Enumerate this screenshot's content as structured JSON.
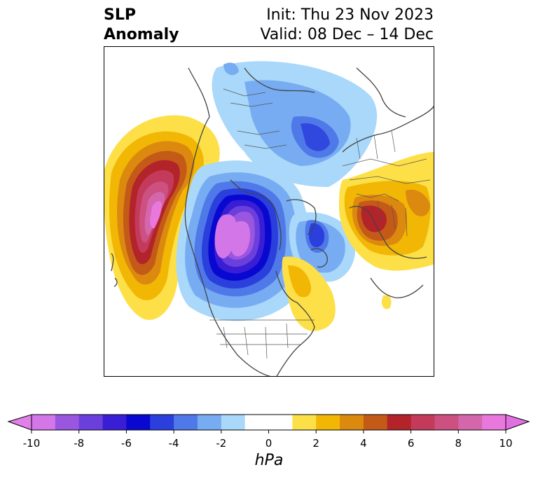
{
  "title": {
    "variable_line1": "SLP",
    "variable_line2": "Anomaly",
    "init": "Init: Thu 23 Nov 2023",
    "valid": "Valid: 08 Dec – 14 Dec"
  },
  "colorbar": {
    "units": "hPa",
    "ticks": [
      "-10",
      "-8",
      "-6",
      "-4",
      "-2",
      "0",
      "2",
      "4",
      "6",
      "8",
      "10"
    ],
    "tick_values": [
      -10,
      -8,
      -6,
      -4,
      -2,
      0,
      2,
      4,
      6,
      8,
      10
    ],
    "levels": [
      -10,
      -9,
      -8,
      -7,
      -6,
      -5,
      -4,
      -3,
      -2,
      -1,
      1,
      2,
      3,
      4,
      5,
      6,
      7,
      8,
      9,
      10
    ],
    "colors": [
      "#d276e8",
      "#9b56e0",
      "#6b3fdc",
      "#3a1ed6",
      "#0808d0",
      "#2a3fdc",
      "#4f79e8",
      "#77acf2",
      "#a9d8fa",
      "#ffffff",
      "#fde047",
      "#f2b705",
      "#dc8a0f",
      "#c45a18",
      "#b2232a",
      "#c43a5a",
      "#cc5080",
      "#d466ac",
      "#e878dc"
    ],
    "under_color": "#e080e8",
    "over_color": "#e070e0",
    "extend": "both"
  },
  "map": {
    "projection": "north-polar-stereographic",
    "field": "SLP anomaly",
    "features": {
      "pacific_high_max_hPa": 10,
      "north_america_low_min_hPa": -10,
      "europe_high_max_hPa": 6,
      "arctic_low_min_hPa": -6,
      "iceland_low_min_hPa": -6,
      "newfoundland_high_max_hPa": 2
    }
  }
}
